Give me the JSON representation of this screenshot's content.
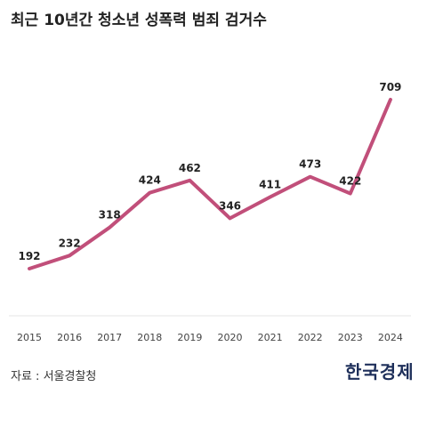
{
  "title": "최근 10년간 청소년 성폭력 범죄 검거수",
  "source": "자료 : 서울경찰청",
  "logo_text": "한국경제",
  "colors": {
    "line": "#c14f7a",
    "baseline": "#e6e6e6",
    "label": "#222222",
    "tick": "#444444",
    "logo": "#1e2f5a"
  },
  "chart_data": {
    "type": "line",
    "title": "최근 10년간 청소년 성폭력 범죄 검거수",
    "xlabel": "",
    "ylabel": "",
    "categories": [
      "2015",
      "2016",
      "2017",
      "2018",
      "2019",
      "2020",
      "2021",
      "2022",
      "2023",
      "2024"
    ],
    "series": [
      {
        "values": [
          192,
          232,
          318,
          424,
          462,
          346,
          411,
          473,
          422,
          709
        ]
      }
    ],
    "ylim": [
      0,
      750
    ],
    "grid": false,
    "legend": "none",
    "data_labels": true
  }
}
